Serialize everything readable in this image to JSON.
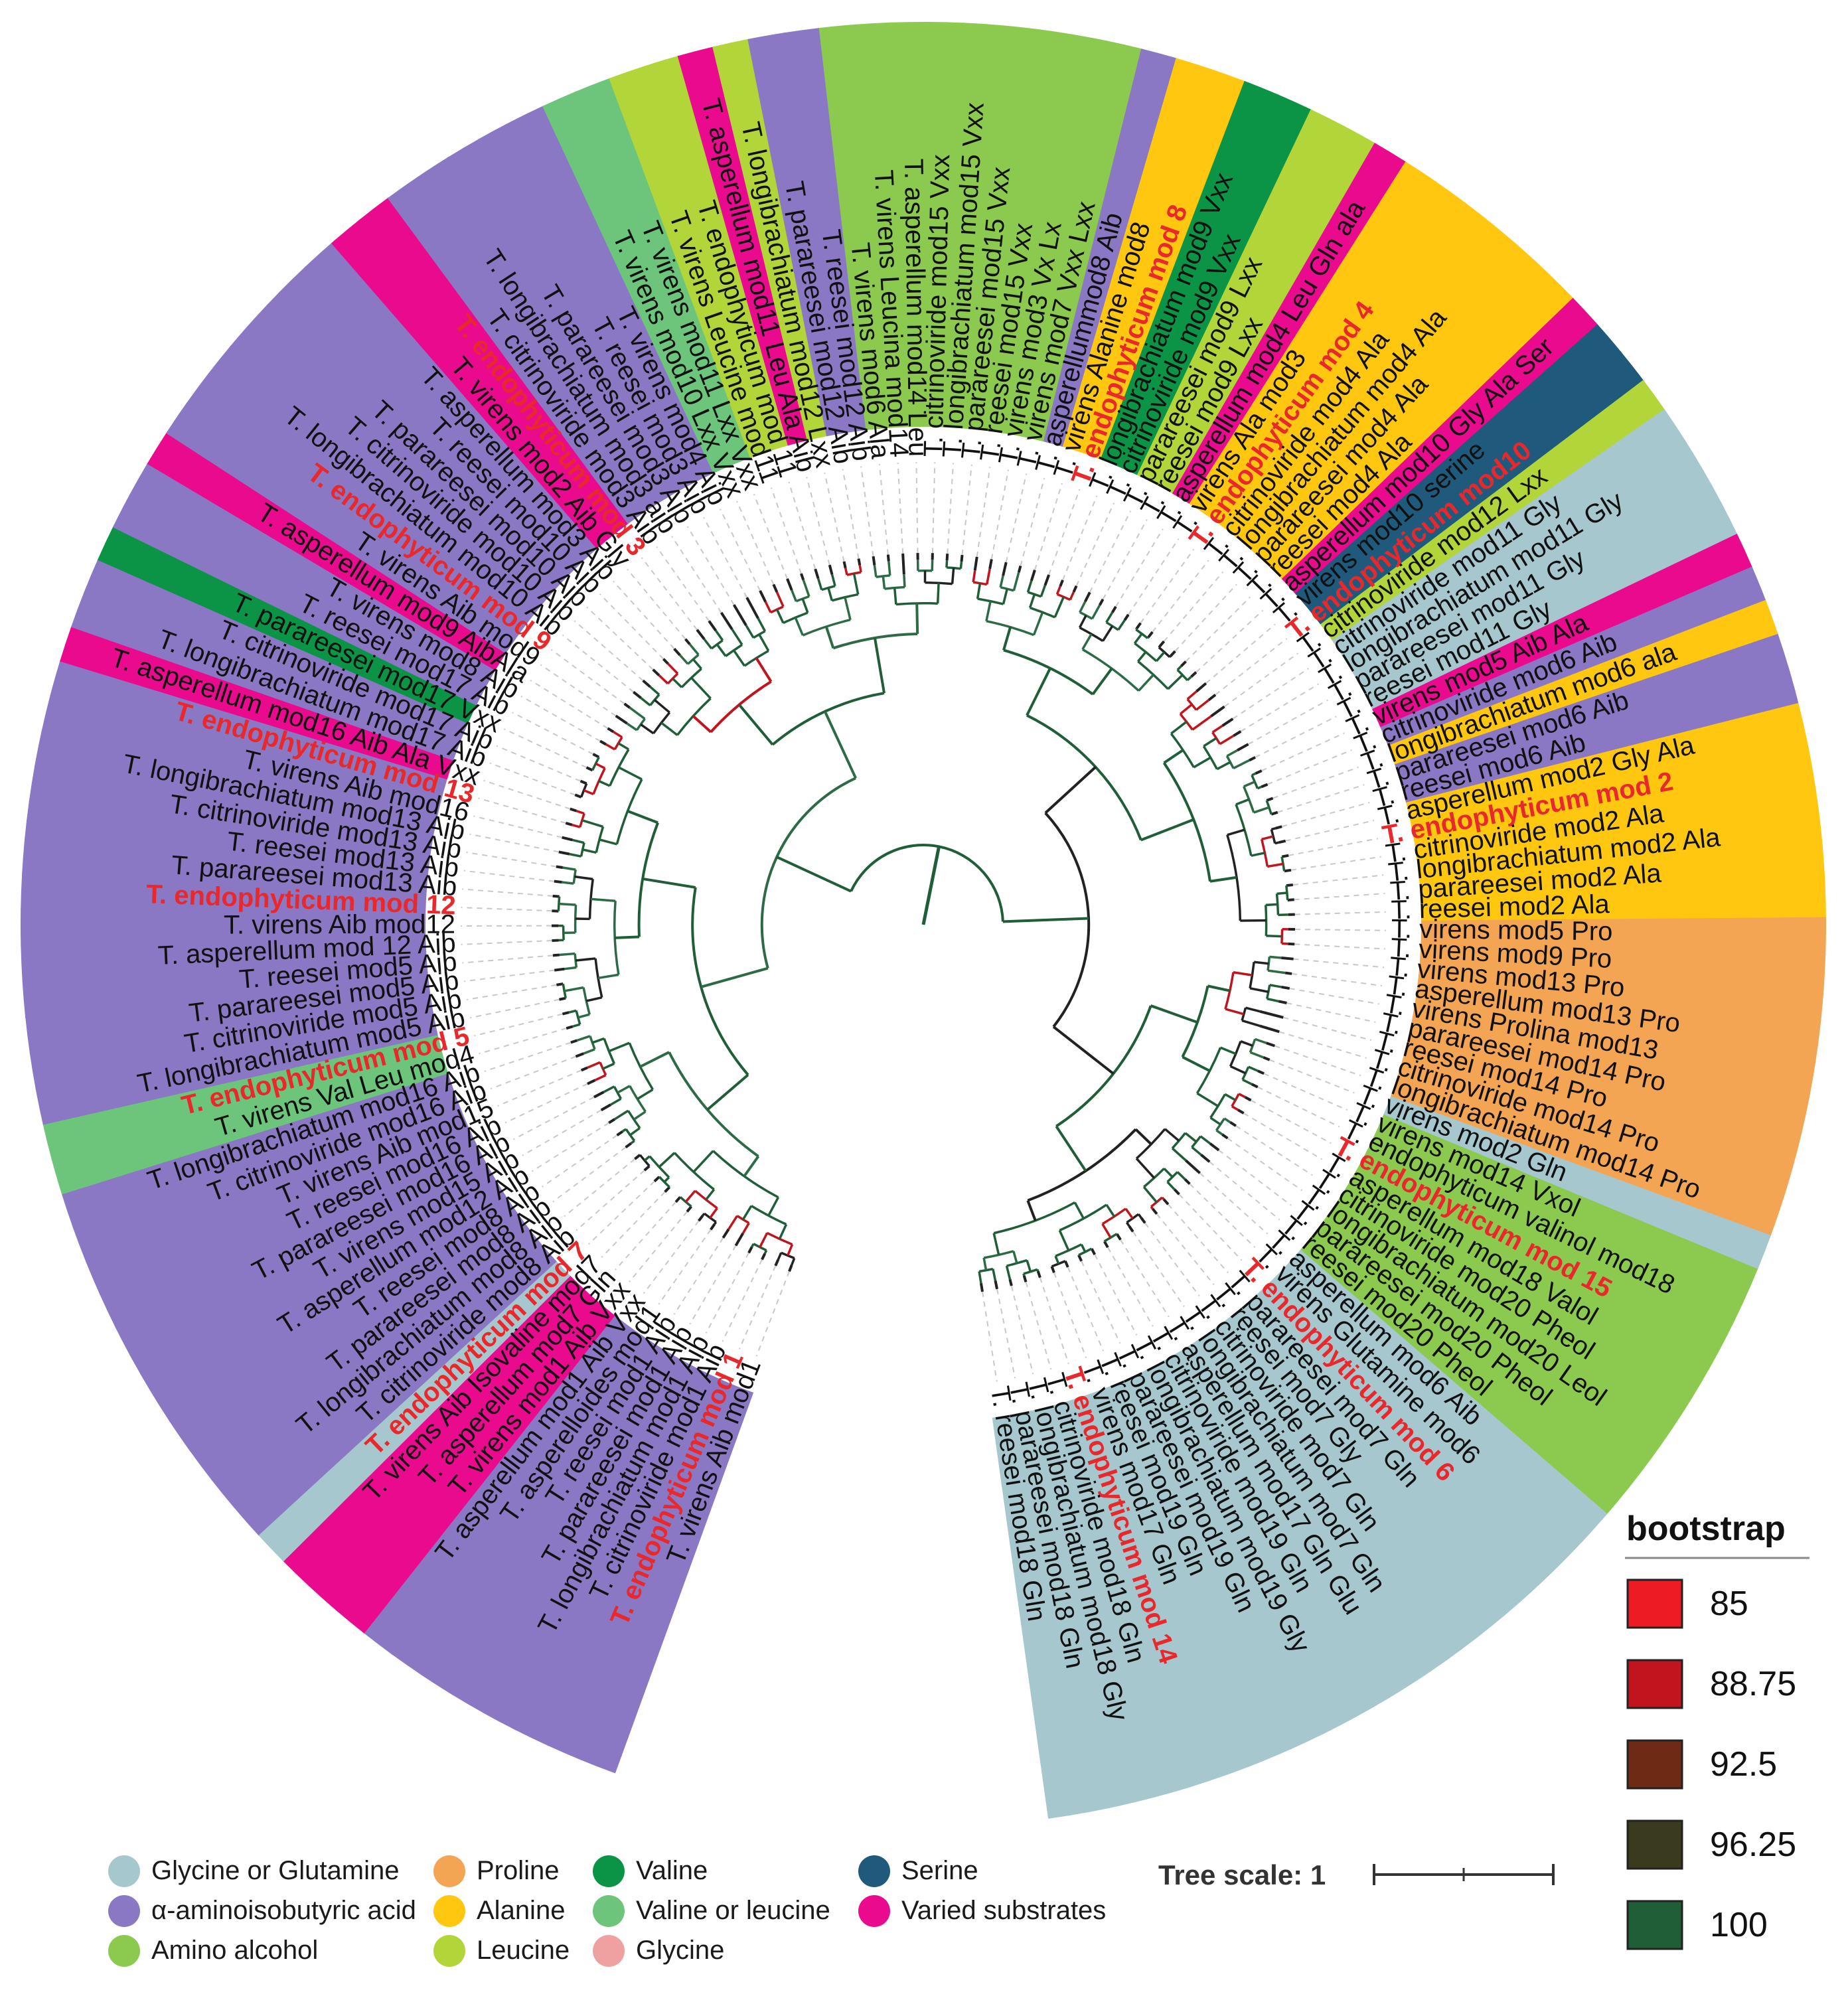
{
  "categories": [
    {
      "key": "gly_gln",
      "label": "Glycine or Glutamine",
      "color": "#a7c7cf"
    },
    {
      "key": "aib",
      "label": "α-aminoisobutyric acid",
      "color": "#8b78c4"
    },
    {
      "key": "amino_alcohol",
      "label": "Amino alcohol",
      "color": "#8cc94f"
    },
    {
      "key": "proline",
      "label": "Proline",
      "color": "#f3a553"
    },
    {
      "key": "alanine",
      "label": "Alanine",
      "color": "#ffc70f"
    },
    {
      "key": "leucine",
      "label": "Leucine",
      "color": "#b2d53a"
    },
    {
      "key": "valine",
      "label": "Valine",
      "color": "#0b9445"
    },
    {
      "key": "val_leu",
      "label": "Valine or leucine",
      "color": "#6cc57b"
    },
    {
      "key": "glycine",
      "label": "Glycine",
      "color": "#efa0a0"
    },
    {
      "key": "serine",
      "label": "Serine",
      "color": "#1f5a7d"
    },
    {
      "key": "varied",
      "label": "Varied substrates",
      "color": "#ea0a8e"
    }
  ],
  "bootstrap": {
    "title": "bootstrap",
    "entries": [
      {
        "label": "85",
        "color": "#ed1c24"
      },
      {
        "label": "88.75",
        "color": "#c0141e"
      },
      {
        "label": "92.5",
        "color": "#6e2a14"
      },
      {
        "label": "96.25",
        "color": "#3a3a1e"
      },
      {
        "label": "100",
        "color": "#1f5e36"
      }
    ]
  },
  "tree_scale": {
    "label": "Tree scale: 1"
  },
  "leaves": [
    {
      "label": "T. virens Aib mod1",
      "cat": "aib"
    },
    {
      "label": "T. endophyticum mod 1",
      "cat": "aib",
      "hl": true
    },
    {
      "label": "T. citrinoviride mod1 Aib",
      "cat": "aib"
    },
    {
      "label": "T. longibrachiatum mod1 Aib",
      "cat": "aib"
    },
    {
      "label": "T. parareesei mod1 Aib",
      "cat": "aib"
    },
    {
      "label": "T. reesei mod1 Aib",
      "cat": "aib"
    },
    {
      "label": "T. asperelloides mod1",
      "cat": "aib"
    },
    {
      "label": "T. asperellum mod1 Aib Vxx",
      "cat": "aib"
    },
    {
      "label": "T. virens mod1 Aib Vxx",
      "cat": "varied"
    },
    {
      "label": "T. asperellum mod7 Gln",
      "cat": "varied"
    },
    {
      "label": "T. virens Aib Isovaline mod7",
      "cat": "varied"
    },
    {
      "label": "T. endophyticum mod 7",
      "cat": "gly_gln",
      "hl": true
    },
    {
      "label": "T. citrinoviride mod8 Aib",
      "cat": "aib"
    },
    {
      "label": "T. longibrachiatum mod8 Aib",
      "cat": "aib"
    },
    {
      "label": "T. parareesei mod8 Aib",
      "cat": "aib"
    },
    {
      "label": "T. reesei mod8 Aib",
      "cat": "aib"
    },
    {
      "label": "T. asperellum mod12 Aib",
      "cat": "aib"
    },
    {
      "label": "T. virens mod15 Aib",
      "cat": "aib"
    },
    {
      "label": "T. parareesei mod16 Aib",
      "cat": "aib"
    },
    {
      "label": "T. reesei mod16 Aib",
      "cat": "aib"
    },
    {
      "label": "T. virens Aib mod15",
      "cat": "aib"
    },
    {
      "label": "T. citrinoviride mod16 Aib",
      "cat": "aib"
    },
    {
      "label": "T. longibrachiatum mod16 Aib",
      "cat": "aib"
    },
    {
      "label": "T. virens Val Leu mod4",
      "cat": "val_leu"
    },
    {
      "label": "T. endophyticum mod 5",
      "cat": "val_leu",
      "hl": true
    },
    {
      "label": "T. longibrachiatum mod5 Aib",
      "cat": "aib"
    },
    {
      "label": "T. citrinoviride mod5 Aib",
      "cat": "aib"
    },
    {
      "label": "T. parareesei mod5 Aib",
      "cat": "aib"
    },
    {
      "label": "T. reesei mod5 Aib",
      "cat": "aib"
    },
    {
      "label": "T. asperellum mod 12 Aib",
      "cat": "aib"
    },
    {
      "label": "T. virens Aib mod12",
      "cat": "aib"
    },
    {
      "label": "T. endophyticum mod 12",
      "cat": "aib",
      "hl": true
    },
    {
      "label": "T. parareesei mod13 Aib",
      "cat": "aib"
    },
    {
      "label": "T. reesei mod13 Aib",
      "cat": "aib"
    },
    {
      "label": "T. citrinoviride mod13 Aib",
      "cat": "aib"
    },
    {
      "label": "T. longibrachiatum mod13 Aib",
      "cat": "aib"
    },
    {
      "label": "T. virens Aib mod16",
      "cat": "aib"
    },
    {
      "label": "T. endophyticum mod 13",
      "cat": "aib",
      "hl": true
    },
    {
      "label": "T. asperellum mod16 Aib Ala Vxx",
      "cat": "varied"
    },
    {
      "label": "T. longibrachiatum mod17 Aib",
      "cat": "aib"
    },
    {
      "label": "T. citrinoviride mod17 Aib",
      "cat": "aib"
    },
    {
      "label": "T. parareesei mod17 Vxx",
      "cat": "valine"
    },
    {
      "label": "T. reesei mod17 Aib",
      "cat": "aib"
    },
    {
      "label": "T. virens mod8 Aib",
      "cat": "aib"
    },
    {
      "label": "T. asperellum mod9 AibAla",
      "cat": "varied"
    },
    {
      "label": "T. virens Aib mod9",
      "cat": "aib"
    },
    {
      "label": "T. endophyticum mod 9",
      "cat": "aib",
      "hl": true
    },
    {
      "label": "T. longibrachiatum mod10 Aib",
      "cat": "aib"
    },
    {
      "label": "T. citrinoviride mod10 Aib",
      "cat": "aib"
    },
    {
      "label": "T. parareesei mod10 Aib",
      "cat": "aib"
    },
    {
      "label": "T. reesei mod10 Aib",
      "cat": "aib"
    },
    {
      "label": "T. asperellum mod3 Aib",
      "cat": "aib"
    },
    {
      "label": "T. virens mod2 Aib Gly",
      "cat": "varied"
    },
    {
      "label": "T. endophyticum mod 3",
      "cat": "varied",
      "hl": true
    },
    {
      "label": "T. citrinoviride mod3 Aib",
      "cat": "aib"
    },
    {
      "label": "T. longibrachiatum mod3 aib",
      "cat": "aib"
    },
    {
      "label": "T. parareesei mod3 Aib",
      "cat": "aib"
    },
    {
      "label": "T. reesei mod3 Aib",
      "cat": "aib"
    },
    {
      "label": "T. virens mod4 Aib",
      "cat": "aib"
    },
    {
      "label": "T. virens mod10 Lxx Vxx",
      "cat": "val_leu"
    },
    {
      "label": "T. virens mod11 Lxx Vxx",
      "cat": "val_leu"
    },
    {
      "label": "T. virens Leucine mod11",
      "cat": "leucine"
    },
    {
      "label": "T. endophyticum mod 11",
      "cat": "leucine"
    },
    {
      "label": "T. asperellum mod11 Leu Ala Aib",
      "cat": "varied"
    },
    {
      "label": "T. longibrachiatum mod12 Lxx",
      "cat": "leucine"
    },
    {
      "label": "T. parareesei mod12 Aib",
      "cat": "aib"
    },
    {
      "label": "T. reesei mod12 Aib",
      "cat": "aib"
    },
    {
      "label": "T. virens mod6 Ala",
      "cat": "amino_alcohol"
    },
    {
      "label": "T. virens Leucina mod14",
      "cat": "amino_alcohol"
    },
    {
      "label": "T. asperellum mod14 Leu",
      "cat": "amino_alcohol"
    },
    {
      "label": "T. citrinoviride mod15 Vxx",
      "cat": "amino_alcohol"
    },
    {
      "label": "T. longibrachiatum mod15 Vxx",
      "cat": "amino_alcohol"
    },
    {
      "label": "T. parareesei mod15 Vxx",
      "cat": "amino_alcohol"
    },
    {
      "label": "T. reesei mod15 Vxx",
      "cat": "amino_alcohol"
    },
    {
      "label": "T. virens mod3 Vx Lx",
      "cat": "amino_alcohol"
    },
    {
      "label": "T. virens mod7 Vxx Lxx",
      "cat": "amino_alcohol"
    },
    {
      "label": "T. asperellummod8 Aib",
      "cat": "aib"
    },
    {
      "label": "T. virens Alanine mod8",
      "cat": "alanine"
    },
    {
      "label": "T. endophyticum mod 8",
      "cat": "alanine",
      "hl": true
    },
    {
      "label": "T. longibrachiatum mod9 Vxx",
      "cat": "valine"
    },
    {
      "label": "T. citrinoviride mod9 Vxx",
      "cat": "valine"
    },
    {
      "label": "T. parareesei mod9 Lxx",
      "cat": "leucine"
    },
    {
      "label": "T. reesei mod9 Lxx",
      "cat": "leucine"
    },
    {
      "label": "T. asperellum mod4 Leu Gln ala",
      "cat": "varied"
    },
    {
      "label": "T. virens Ala mod3",
      "cat": "alanine"
    },
    {
      "label": "T. endophyticum mod 4",
      "cat": "alanine",
      "hl": true
    },
    {
      "label": "T. citrinoviride mod4 Ala",
      "cat": "alanine"
    },
    {
      "label": "T. longibrachiatum mod4 Ala",
      "cat": "alanine"
    },
    {
      "label": "T. parareesei mod4 Ala",
      "cat": "alanine"
    },
    {
      "label": "T. reesei mod4 Ala",
      "cat": "alanine"
    },
    {
      "label": "T. asperellum mod10 Gly Ala Ser",
      "cat": "varied"
    },
    {
      "label": "T. virens mod10 serine",
      "cat": "serine"
    },
    {
      "label": "T. endophyticum mod10",
      "cat": "serine",
      "hl": true
    },
    {
      "label": "T. citrinoviride mod12 Lxx",
      "cat": "leucine"
    },
    {
      "label": "T. citrinoviride mod11 Gly",
      "cat": "gly_gln"
    },
    {
      "label": "T. longibrachiatum mod11 Gly",
      "cat": "gly_gln"
    },
    {
      "label": "T. parareesei mod11 Gly",
      "cat": "gly_gln"
    },
    {
      "label": "T. reesei mod11 Gly",
      "cat": "gly_gln"
    },
    {
      "label": "T. virens mod5 Aib Ala",
      "cat": "varied"
    },
    {
      "label": "T. citrinoviride mod6 Aib",
      "cat": "aib"
    },
    {
      "label": "T. longibrachiatum mod6 ala",
      "cat": "alanine"
    },
    {
      "label": "T. parareesei mod6 Aib",
      "cat": "aib"
    },
    {
      "label": "T. reesei mod6 Aib",
      "cat": "aib"
    },
    {
      "label": "T. asperellum mod2 Gly Ala",
      "cat": "alanine"
    },
    {
      "label": "T. endophyticum mod 2",
      "cat": "alanine",
      "hl": true
    },
    {
      "label": "T. citrinoviride mod2 Ala",
      "cat": "alanine"
    },
    {
      "label": "T. longibrachiatum mod2 Ala",
      "cat": "alanine"
    },
    {
      "label": "T. parareesei mod2 Ala",
      "cat": "alanine"
    },
    {
      "label": "T. reesei mod2 Ala",
      "cat": "alanine"
    },
    {
      "label": "T. virens mod5 Pro",
      "cat": "proline"
    },
    {
      "label": "T. virens mod9 Pro",
      "cat": "proline"
    },
    {
      "label": "T. virens mod13 Pro",
      "cat": "proline"
    },
    {
      "label": "T. asperellum mod13 Pro",
      "cat": "proline"
    },
    {
      "label": "T. virens Prolina mod13",
      "cat": "proline"
    },
    {
      "label": "T. parareesei mod14 Pro",
      "cat": "proline"
    },
    {
      "label": "T. reesei mod14 Pro",
      "cat": "proline"
    },
    {
      "label": "T. citrinoviride mod14 Pro",
      "cat": "proline"
    },
    {
      "label": "T. longibrachiatum mod14 Pro",
      "cat": "proline"
    },
    {
      "label": "T. virens mod2 Gln",
      "cat": "gly_gln"
    },
    {
      "label": "T. virens mod14 Vxol",
      "cat": "amino_alcohol"
    },
    {
      "label": "T. endophyticum valinol mod18",
      "cat": "amino_alcohol"
    },
    {
      "label": "T. endophyticum mod 15",
      "cat": "amino_alcohol",
      "hl": true
    },
    {
      "label": "T. asperellum mod18 Valol",
      "cat": "amino_alcohol"
    },
    {
      "label": "T. citrinoviride mod20 Pheol",
      "cat": "amino_alcohol"
    },
    {
      "label": "T. longibrachiatum mod20 Leol",
      "cat": "amino_alcohol"
    },
    {
      "label": "T. parareesei mod20 Pheol",
      "cat": "amino_alcohol"
    },
    {
      "label": "T. reesei mod20 Pheol",
      "cat": "amino_alcohol"
    },
    {
      "label": "T. asperellum mod6 Aib",
      "cat": "gly_gln"
    },
    {
      "label": "T. virens Glutamine mod6",
      "cat": "gly_gln"
    },
    {
      "label": "T. endophyticum mod 6",
      "cat": "gly_gln",
      "hl": true
    },
    {
      "label": "T. parareesei mod7 Gln",
      "cat": "gly_gln"
    },
    {
      "label": "T. reesei mod7 Gly",
      "cat": "gly_gln"
    },
    {
      "label": "T. citrinoviride mod7 Gln",
      "cat": "gly_gln"
    },
    {
      "label": "T. longibrachiatum mod7 Gln",
      "cat": "gly_gln"
    },
    {
      "label": "T. asperellum mod17 Gln Glu",
      "cat": "gly_gln"
    },
    {
      "label": "T. citrinoviride mod19 Gln",
      "cat": "gly_gln"
    },
    {
      "label": "T. longibrachiatum mod19 Gly",
      "cat": "gly_gln"
    },
    {
      "label": "T. parareesei mod19 Gln",
      "cat": "gly_gln"
    },
    {
      "label": "T. reesei mod19 Gln",
      "cat": "gly_gln"
    },
    {
      "label": "T. virens mod17 Gln",
      "cat": "gly_gln"
    },
    {
      "label": "T. endophyticum mod 14",
      "cat": "gly_gln",
      "hl": true
    },
    {
      "label": "T. citrinoviride mod18 Gln",
      "cat": "gly_gln"
    },
    {
      "label": "T. longibrachiatum mod18 Gly",
      "cat": "gly_gln"
    },
    {
      "label": "T. parareesei mod18 Gln",
      "cat": "gly_gln"
    },
    {
      "label": "T. reesei mod18 Gln",
      "cat": "gly_gln"
    }
  ]
}
